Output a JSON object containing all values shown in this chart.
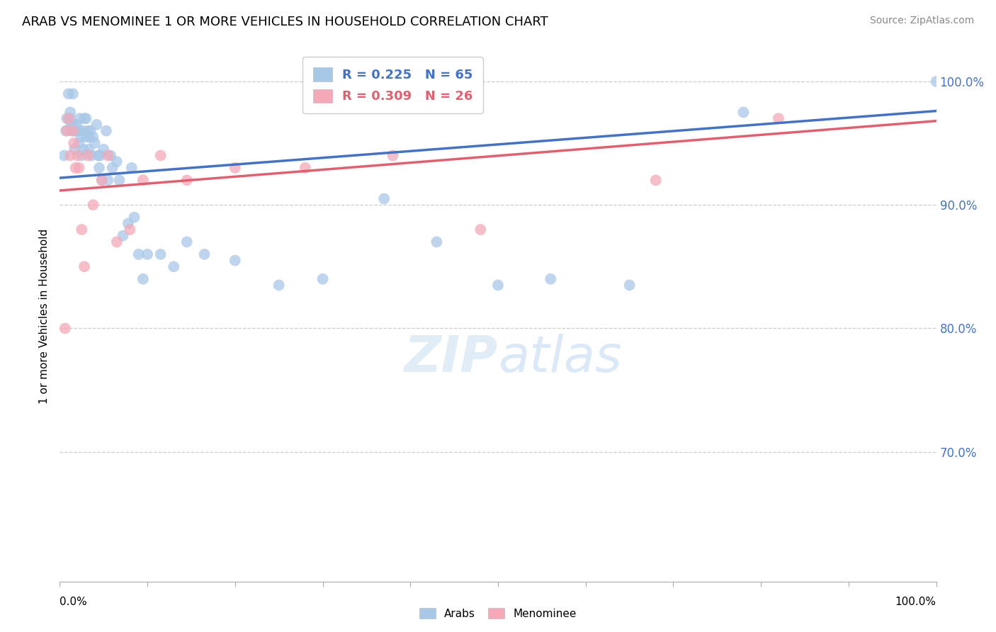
{
  "title": "ARAB VS MENOMINEE 1 OR MORE VEHICLES IN HOUSEHOLD CORRELATION CHART",
  "source": "Source: ZipAtlas.com",
  "ylabel": "1 or more Vehicles in Household",
  "ytick_labels": [
    "100.0%",
    "90.0%",
    "80.0%",
    "70.0%"
  ],
  "ytick_values": [
    1.0,
    0.9,
    0.8,
    0.7
  ],
  "xlim": [
    0.0,
    1.0
  ],
  "ylim": [
    0.595,
    1.025
  ],
  "arab_color": "#a8c8e8",
  "menominee_color": "#f4a8b8",
  "arab_line_color": "#4472c4",
  "menominee_line_color": "#e06070",
  "watermark_color": "#ddeeff",
  "arab_R": 0.225,
  "arab_N": 65,
  "menominee_R": 0.309,
  "menominee_N": 26,
  "arab_x": [
    0.005,
    0.007,
    0.008,
    0.01,
    0.012,
    0.012,
    0.013,
    0.014,
    0.015,
    0.015,
    0.016,
    0.017,
    0.018,
    0.019,
    0.02,
    0.022,
    0.022,
    0.023,
    0.024,
    0.025,
    0.026,
    0.027,
    0.028,
    0.03,
    0.031,
    0.032,
    0.033,
    0.034,
    0.035,
    0.036,
    0.038,
    0.04,
    0.042,
    0.044,
    0.045,
    0.046,
    0.048,
    0.05,
    0.053,
    0.055,
    0.058,
    0.06,
    0.065,
    0.068,
    0.072,
    0.078,
    0.082,
    0.085,
    0.09,
    0.095,
    0.1,
    0.115,
    0.13,
    0.145,
    0.165,
    0.2,
    0.25,
    0.3,
    0.37,
    0.43,
    0.5,
    0.56,
    0.65,
    0.78,
    1.0
  ],
  "arab_y": [
    0.94,
    0.96,
    0.97,
    0.99,
    0.975,
    0.97,
    0.965,
    0.96,
    0.99,
    0.965,
    0.96,
    0.945,
    0.96,
    0.965,
    0.96,
    0.96,
    0.95,
    0.97,
    0.955,
    0.94,
    0.96,
    0.945,
    0.97,
    0.97,
    0.955,
    0.96,
    0.945,
    0.955,
    0.96,
    0.94,
    0.955,
    0.95,
    0.965,
    0.94,
    0.93,
    0.94,
    0.92,
    0.945,
    0.96,
    0.92,
    0.94,
    0.93,
    0.935,
    0.92,
    0.875,
    0.885,
    0.93,
    0.89,
    0.86,
    0.84,
    0.86,
    0.86,
    0.85,
    0.87,
    0.86,
    0.855,
    0.835,
    0.84,
    0.905,
    0.87,
    0.835,
    0.84,
    0.835,
    0.975,
    1.0
  ],
  "menominee_x": [
    0.006,
    0.008,
    0.01,
    0.012,
    0.015,
    0.016,
    0.018,
    0.02,
    0.022,
    0.025,
    0.028,
    0.032,
    0.038,
    0.048,
    0.055,
    0.065,
    0.08,
    0.095,
    0.115,
    0.145,
    0.2,
    0.28,
    0.38,
    0.48,
    0.68,
    0.82
  ],
  "menominee_y": [
    0.8,
    0.96,
    0.97,
    0.94,
    0.96,
    0.95,
    0.93,
    0.94,
    0.93,
    0.88,
    0.85,
    0.94,
    0.9,
    0.92,
    0.94,
    0.87,
    0.88,
    0.92,
    0.94,
    0.92,
    0.93,
    0.93,
    0.94,
    0.88,
    0.92,
    0.97
  ]
}
